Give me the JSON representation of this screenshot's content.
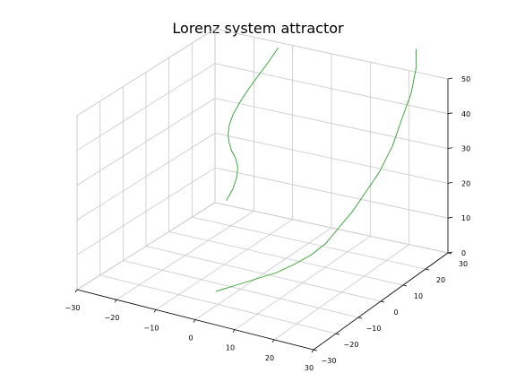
{
  "chart_data": {
    "type": "line",
    "projection": "3d",
    "title": "Lorenz system attractor",
    "xlim": [
      -30,
      30
    ],
    "ylim": [
      -30,
      30
    ],
    "zlim": [
      0,
      50
    ],
    "x_ticks": [
      "−30",
      "−20",
      "−10",
      "0",
      "10",
      "20",
      "30"
    ],
    "y_ticks": [
      "−30",
      "−20",
      "−10",
      "0",
      "10",
      "20",
      "30"
    ],
    "z_ticks": [
      "0",
      "10",
      "20",
      "30",
      "40",
      "50"
    ],
    "grid": true,
    "series": [
      {
        "color": "#2ca02c",
        "segments": [
          {
            "x": [
              -6.0,
              -5.2,
              -5.0,
              -5.3,
              -6.1,
              -7.2,
              -8.2,
              -8.8,
              -8.9,
              -8.5,
              -7.6,
              -6.5,
              -5.0,
              -3.5,
              -2.0
            ],
            "y": [
              -6.0,
              -4.4,
              -3.0,
              -2.2,
              -1.8,
              -1.5,
              -1.0,
              -0.4,
              0.4,
              1.4,
              2.6,
              4.0,
              5.6,
              7.6,
              10.0
            ],
            "z": [
              22.0,
              25.0,
              28.0,
              30.5,
              32.5,
              34.0,
              36.0,
              38.0,
              40.5,
              43.0,
              46.0,
              49.0,
              52.5,
              56.0,
              60.0
            ]
          },
          {
            "x": [
              -4.0,
              0.0,
              4.0,
              8.0,
              11.5,
              14.5,
              17.0,
              19.0,
              21.0,
              23.0,
              25.0,
              27.0,
              28.0,
              28.6,
              28.2,
              27.0
            ],
            "y": [
              -14.0,
              -12.0,
              -10.0,
              -8.0,
              -6.0,
              -4.0,
              -2.0,
              0.5,
              3.0,
              5.5,
              8.0,
              10.5,
              13.0,
              16.0,
              19.0,
              21.0
            ],
            "z": [
              0.0,
              2.0,
              4.0,
              6.0,
              8.5,
              11.0,
              14.0,
              18.0,
              22.0,
              27.0,
              32.0,
              39.0,
              46.0,
              52.0,
              58.0,
              62.0
            ]
          }
        ]
      }
    ]
  }
}
